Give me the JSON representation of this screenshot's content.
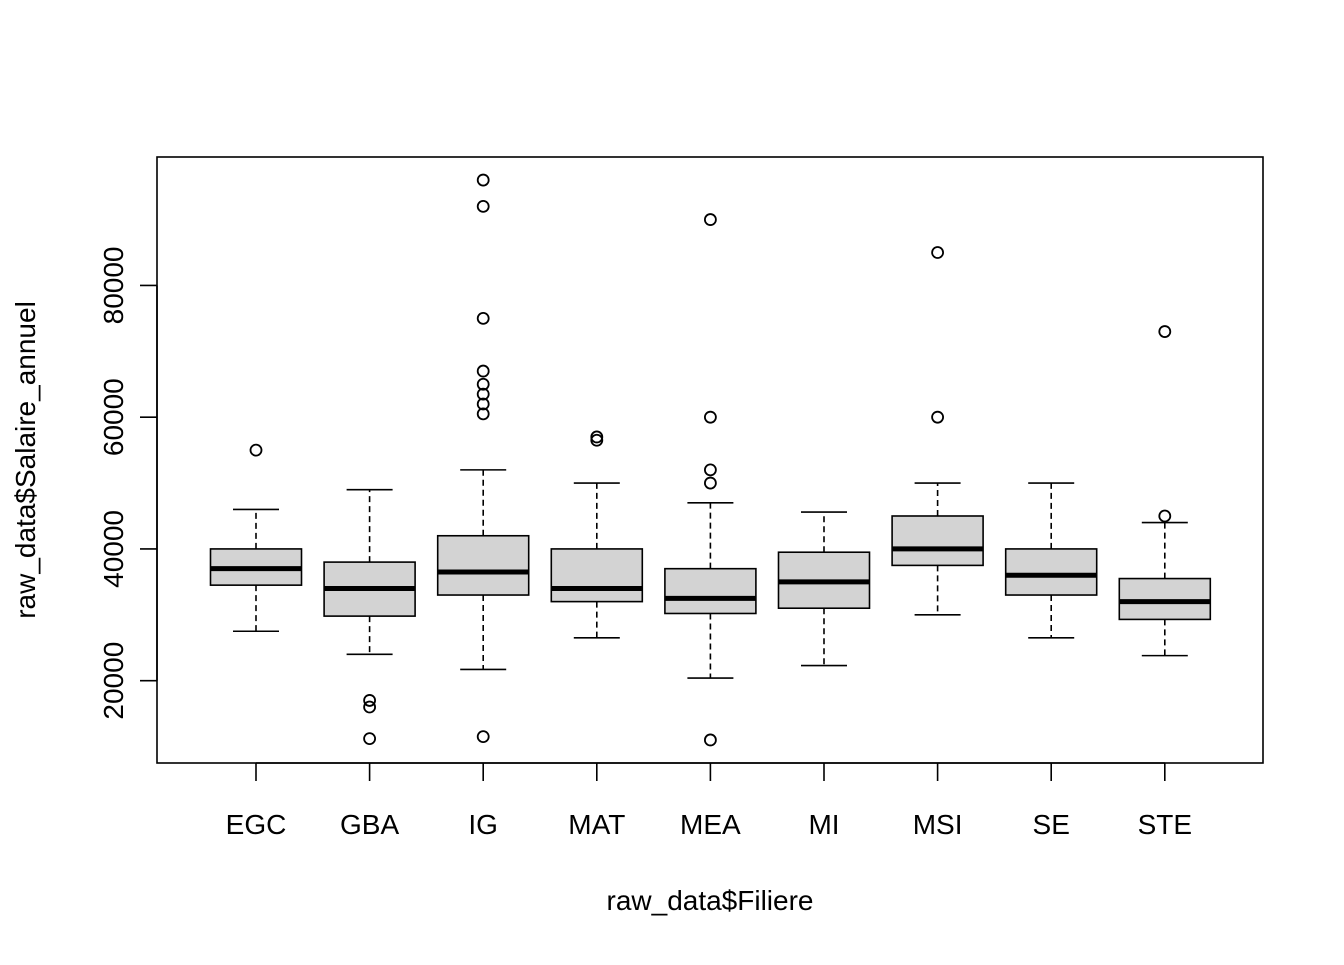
{
  "chart_data": {
    "type": "box",
    "xlabel": "raw_data$Filiere",
    "ylabel": "raw_data$Salaire_annuel",
    "ylim": [
      7500,
      99500
    ],
    "yticks": [
      20000,
      40000,
      60000,
      80000
    ],
    "ytick_labels": [
      "20000",
      "40000",
      "60000",
      "80000"
    ],
    "categories": [
      "EGC",
      "GBA",
      "IG",
      "MAT",
      "MEA",
      "MI",
      "MSI",
      "SE",
      "STE"
    ],
    "box_fill": "#d3d3d3",
    "groups": [
      {
        "name": "EGC",
        "whisker_low": 27500,
        "q1": 34500,
        "median": 37000,
        "q3": 40000,
        "whisker_high": 46000,
        "outliers": [
          55000
        ]
      },
      {
        "name": "GBA",
        "whisker_low": 24000,
        "q1": 29800,
        "median": 34000,
        "q3": 38000,
        "whisker_high": 49000,
        "outliers": [
          17000,
          16000,
          11200
        ]
      },
      {
        "name": "IG",
        "whisker_low": 21700,
        "q1": 33000,
        "median": 36500,
        "q3": 42000,
        "whisker_high": 52000,
        "outliers": [
          96000,
          92000,
          75000,
          67000,
          65000,
          63500,
          62000,
          60500,
          11500
        ]
      },
      {
        "name": "MAT",
        "whisker_low": 26500,
        "q1": 32000,
        "median": 34000,
        "q3": 40000,
        "whisker_high": 50000,
        "outliers": [
          57000,
          56500
        ]
      },
      {
        "name": "MEA",
        "whisker_low": 20400,
        "q1": 30200,
        "median": 32500,
        "q3": 37000,
        "whisker_high": 47000,
        "outliers": [
          90000,
          60000,
          52000,
          50000,
          11000
        ]
      },
      {
        "name": "MI",
        "whisker_low": 22300,
        "q1": 31000,
        "median": 35000,
        "q3": 39500,
        "whisker_high": 45600,
        "outliers": []
      },
      {
        "name": "MSI",
        "whisker_low": 30000,
        "q1": 37500,
        "median": 40000,
        "q3": 45000,
        "whisker_high": 50000,
        "outliers": [
          85000,
          60000
        ]
      },
      {
        "name": "SE",
        "whisker_low": 26500,
        "q1": 33000,
        "median": 36000,
        "q3": 40000,
        "whisker_high": 50000,
        "outliers": []
      },
      {
        "name": "STE",
        "whisker_low": 23800,
        "q1": 29300,
        "median": 32000,
        "q3": 35500,
        "whisker_high": 44000,
        "outliers": [
          73000,
          45000
        ]
      }
    ]
  }
}
